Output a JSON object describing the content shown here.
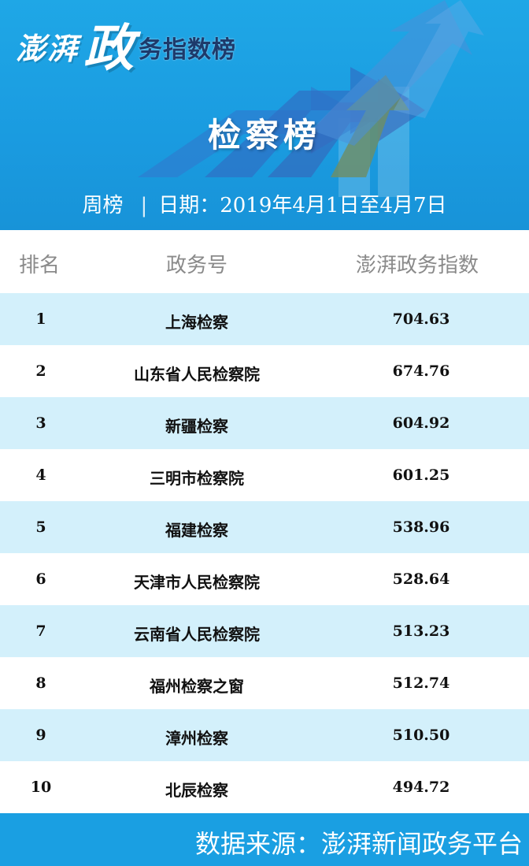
{
  "header": {
    "brand_part1": "澎湃",
    "brand_part2": "政",
    "brand_part3": "务指数榜",
    "board_title": "检察榜",
    "period": "周榜",
    "separator": "|",
    "date_range": "日期：2019年4月1日至4月7日"
  },
  "table": {
    "headers": {
      "rank": "排名",
      "name": "政务号",
      "score": "澎湃政务指数"
    },
    "rows": [
      {
        "rank": "1",
        "name": "上海检察",
        "score": "704.63"
      },
      {
        "rank": "2",
        "name": "山东省人民检察院",
        "score": "674.76"
      },
      {
        "rank": "3",
        "name": "新疆检察",
        "score": "604.92"
      },
      {
        "rank": "4",
        "name": "三明市检察院",
        "score": "601.25"
      },
      {
        "rank": "5",
        "name": "福建检察",
        "score": "538.96"
      },
      {
        "rank": "6",
        "name": "天津市人民检察院",
        "score": "528.64"
      },
      {
        "rank": "7",
        "name": "云南省人民检察院",
        "score": "513.23"
      },
      {
        "rank": "8",
        "name": "福州检察之窗",
        "score": "512.74"
      },
      {
        "rank": "9",
        "name": "漳州检察",
        "score": "510.50"
      },
      {
        "rank": "10",
        "name": "北辰检察",
        "score": "494.72"
      }
    ]
  },
  "footer": {
    "source": "数据来源：澎湃新闻政务平台"
  },
  "colors": {
    "header_blue": "#1a9be0",
    "row_highlight": "#d3f0fb",
    "footer_blue": "#1a9fe2",
    "header_text_gray": "#8a8a8a"
  }
}
